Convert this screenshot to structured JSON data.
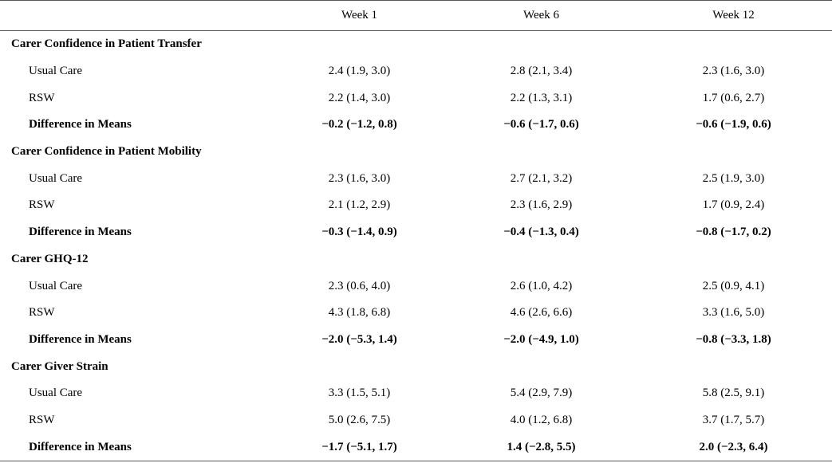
{
  "header": {
    "col0": "",
    "col1": "Week 1",
    "col2": "Week 6",
    "col3": "Week 12"
  },
  "sections": [
    {
      "title": "Carer Confidence in Patient Transfer",
      "rows": [
        {
          "label": "Usual Care",
          "w1": "2.4 (1.9, 3.0)",
          "w6": "2.8 (2.1, 3.4)",
          "w12": "2.3 (1.6, 3.0)"
        },
        {
          "label": "RSW",
          "w1": "2.2 (1.4, 3.0)",
          "w6": "2.2 (1.3, 3.1)",
          "w12": "1.7 (0.6, 2.7)"
        },
        {
          "label": "Difference in Means",
          "w1": "−0.2 (−1.2, 0.8)",
          "w6": "−0.6 (−1.7, 0.6)",
          "w12": "−0.6 (−1.9, 0.6)"
        }
      ]
    },
    {
      "title": "Carer Confidence in Patient Mobility",
      "rows": [
        {
          "label": "Usual Care",
          "w1": "2.3 (1.6, 3.0)",
          "w6": "2.7 (2.1, 3.2)",
          "w12": "2.5 (1.9, 3.0)"
        },
        {
          "label": "RSW",
          "w1": "2.1 (1.2, 2.9)",
          "w6": "2.3 (1.6, 2.9)",
          "w12": "1.7 (0.9, 2.4)"
        },
        {
          "label": "Difference in Means",
          "w1": "−0.3 (−1.4, 0.9)",
          "w6": "−0.4 (−1.3, 0.4)",
          "w12": "−0.8 (−1.7, 0.2)"
        }
      ]
    },
    {
      "title": "Carer GHQ-12",
      "rows": [
        {
          "label": "Usual Care",
          "w1": "2.3 (0.6, 4.0)",
          "w6": "2.6 (1.0, 4.2)",
          "w12": "2.5 (0.9, 4.1)"
        },
        {
          "label": "RSW",
          "w1": "4.3 (1.8, 6.8)",
          "w6": "4.6 (2.6, 6.6)",
          "w12": "3.3 (1.6, 5.0)"
        },
        {
          "label": "Difference in Means",
          "w1": "−2.0 (−5.3, 1.4)",
          "w6": "−2.0 (−4.9, 1.0)",
          "w12": "−0.8 (−3.3, 1.8)"
        }
      ]
    },
    {
      "title": "Carer Giver Strain",
      "rows": [
        {
          "label": "Usual Care",
          "w1": "3.3 (1.5, 5.1)",
          "w6": "5.4 (2.9, 7.9)",
          "w12": "5.8 (2.5, 9.1)"
        },
        {
          "label": "RSW",
          "w1": "5.0 (2.6, 7.5)",
          "w6": "4.0 (1.2, 6.8)",
          "w12": "3.7 (1.7, 5.7)"
        },
        {
          "label": "Difference in Means",
          "w1": "−1.7 (−5.1, 1.7)",
          "w6": "1.4 (−2.8, 5.5)",
          "w12": "2.0 (−2.3, 6.4)"
        }
      ]
    }
  ]
}
